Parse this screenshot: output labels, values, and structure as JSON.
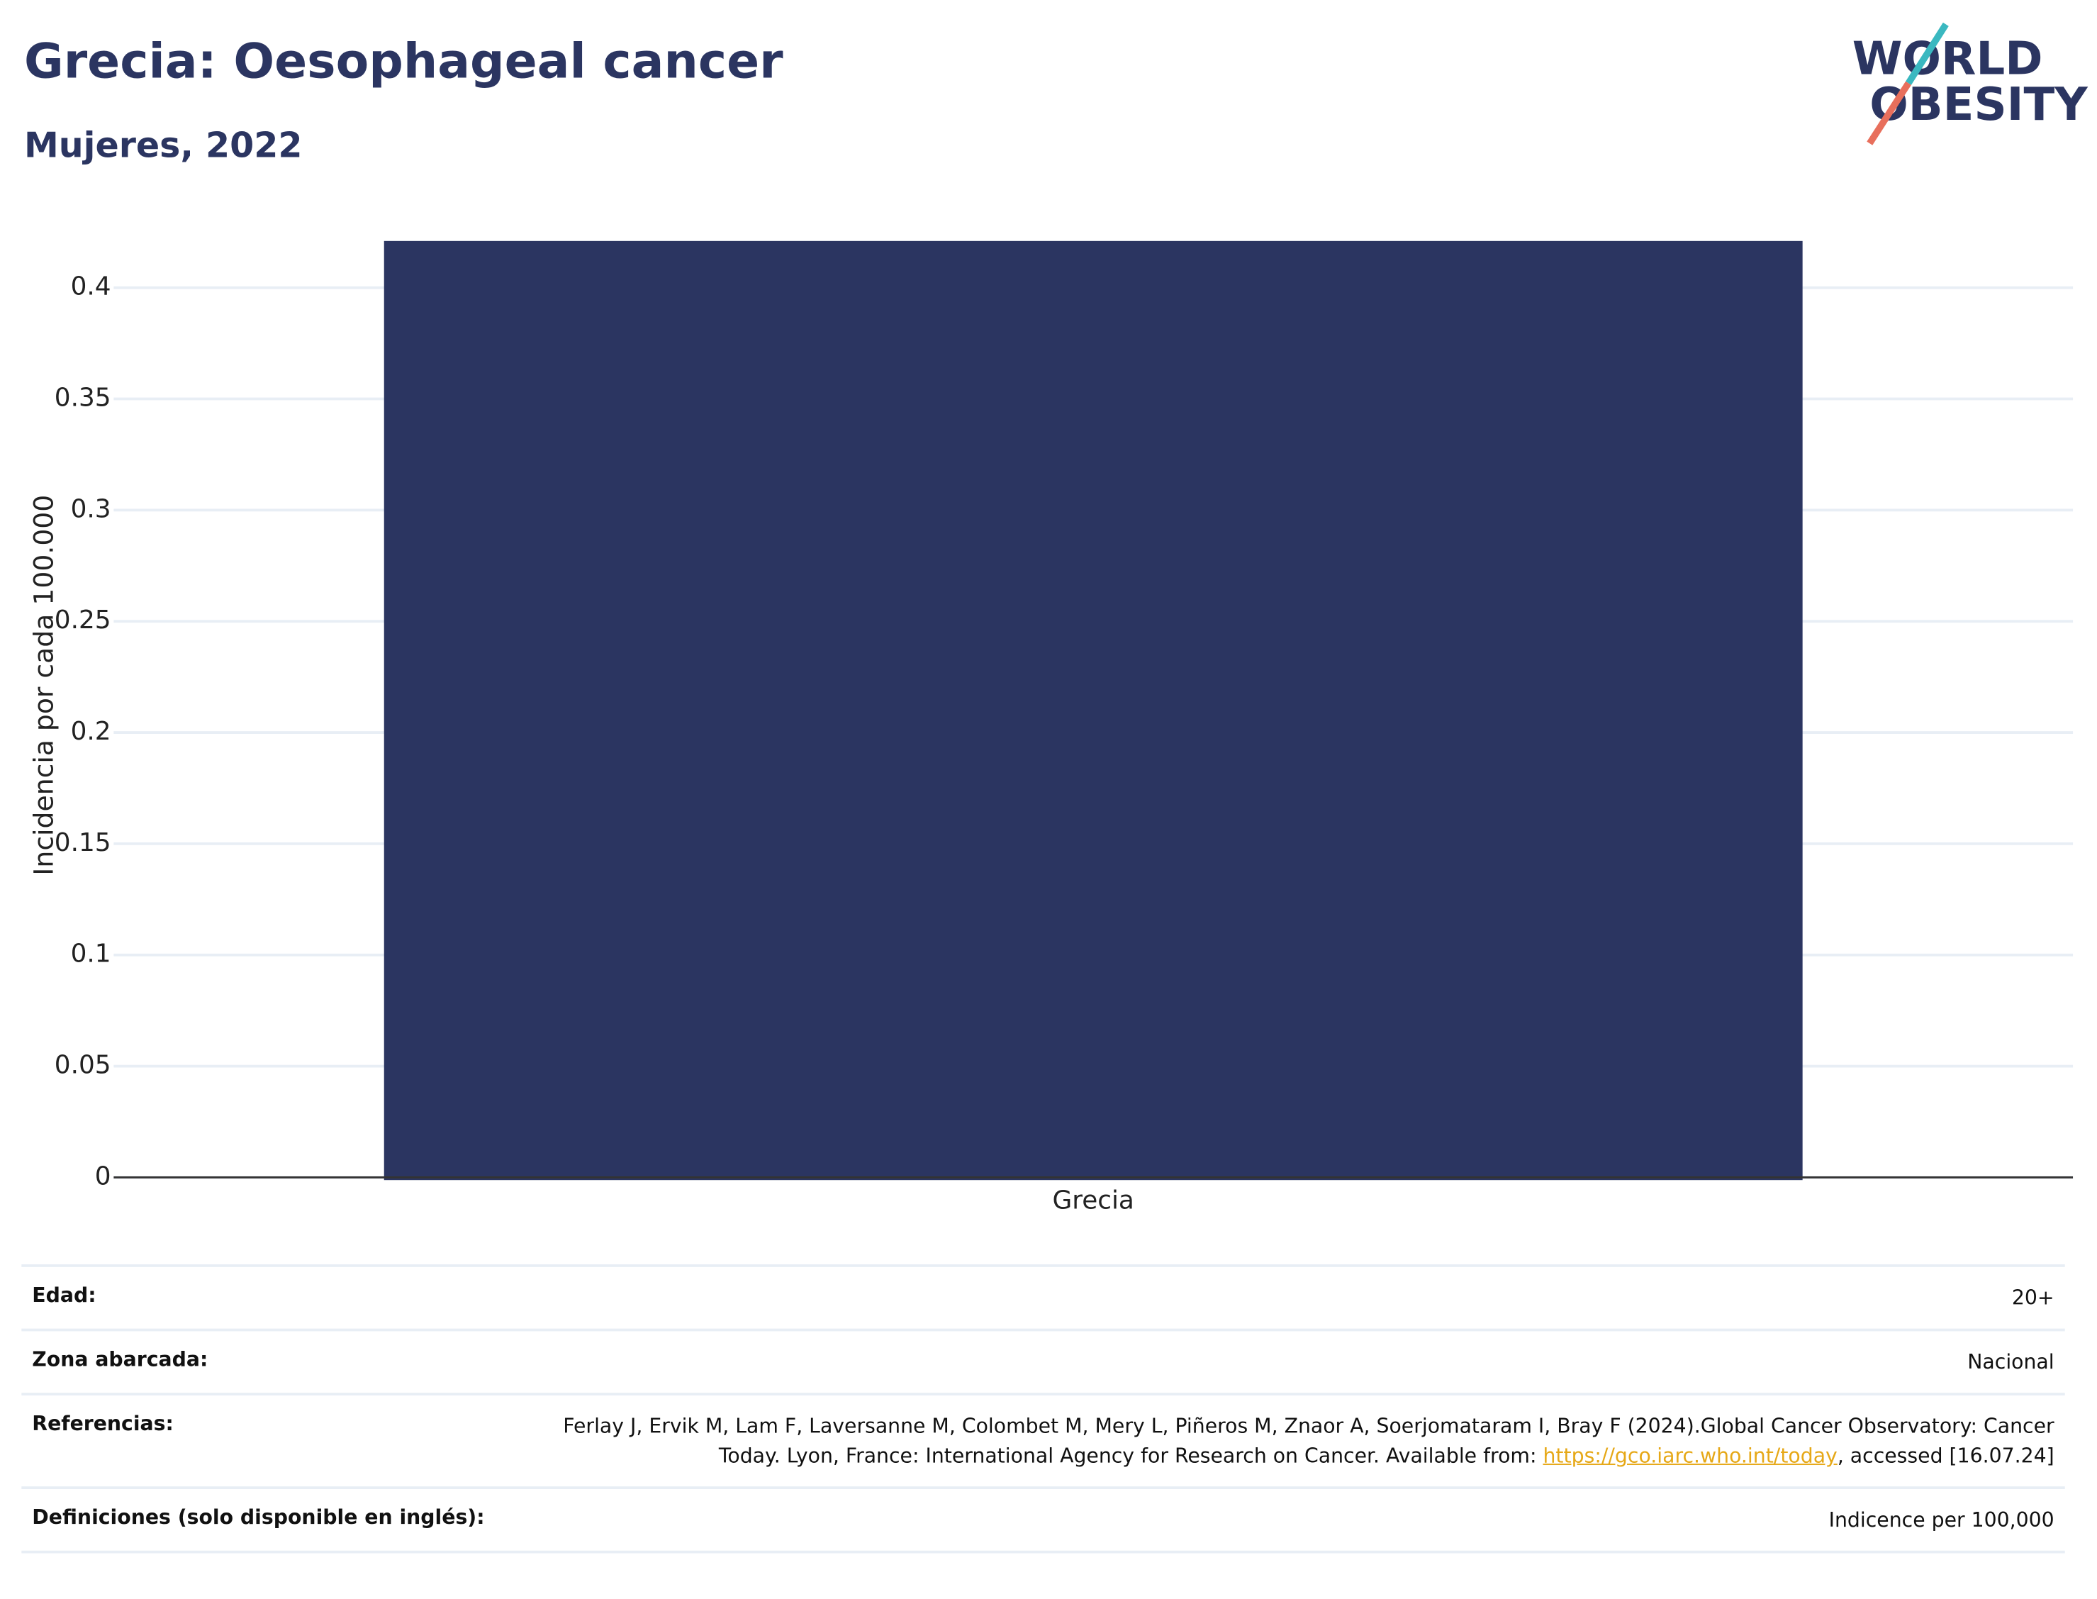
{
  "chart_data": {
    "type": "bar",
    "title": "Grecia: Oesophageal cancer",
    "subtitle": "Mujeres, 2022",
    "y_label": "Incidencia por cada 100.000",
    "categories": [
      "Grecia"
    ],
    "values": [
      0.421
    ],
    "color": "#2b3561",
    "ylim": [
      0,
      0.43
    ],
    "yticks": [
      0,
      0.05,
      0.1,
      0.15,
      0.2,
      0.25,
      0.3,
      0.35,
      0.4
    ],
    "grid": true
  },
  "logo": {
    "line1": "WORLD",
    "line2": "OBESITY"
  },
  "table": {
    "rows": [
      {
        "label": "Edad:",
        "value": "20+"
      },
      {
        "label": "Zona abarcada:",
        "value": "Nacional"
      },
      {
        "label": "Referencias:",
        "value": "Ferlay J, Ervik M, Lam F, Laversanne M, Colombet M, Mery L, Piñeros M, Znaor A, Soerjomataram I, Bray F (2024).Global Cancer Observatory: Cancer Today. Lyon, France: International Agency for Research on Cancer. Available from: ",
        "link": "https://gco.iarc.who.int/today",
        "after": ", accessed [16.07.24]"
      },
      {
        "label": "Definiciones (solo disponible en inglés):",
        "value": "Indicence per 100,000"
      }
    ]
  }
}
